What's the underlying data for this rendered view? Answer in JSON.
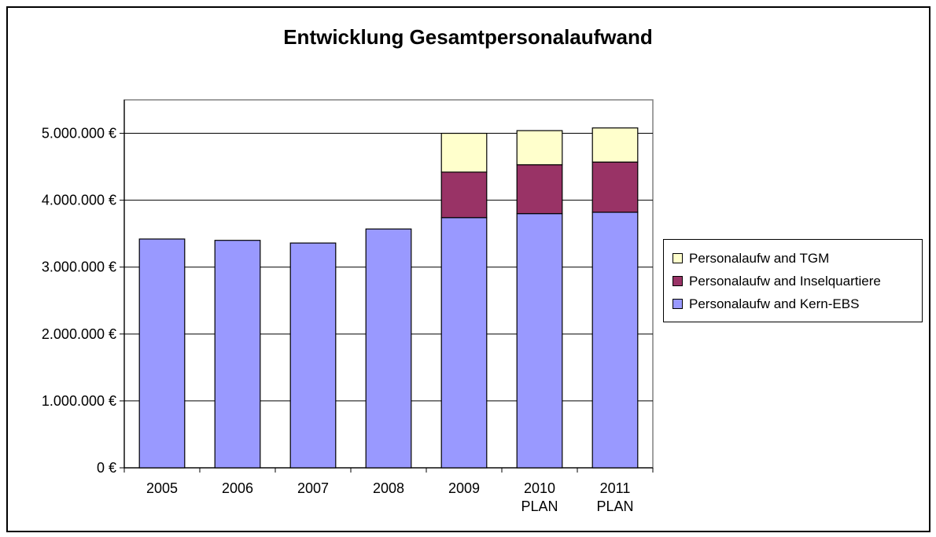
{
  "chart_data": {
    "type": "bar",
    "stacked": true,
    "title": "Entwicklung Gesamtpersonalaufwand",
    "categories": [
      [
        "2005"
      ],
      [
        "2006"
      ],
      [
        "2007"
      ],
      [
        "2008"
      ],
      [
        "2009"
      ],
      [
        "2010",
        "PLAN"
      ],
      [
        "2011",
        "PLAN"
      ]
    ],
    "ylim": [
      0,
      5500000
    ],
    "yticks": [
      {
        "value": 0,
        "label": "0 €"
      },
      {
        "value": 1000000,
        "label": "1.000.000 €"
      },
      {
        "value": 2000000,
        "label": "2.000.000 €"
      },
      {
        "value": 3000000,
        "label": "3.000.000 €"
      },
      {
        "value": 4000000,
        "label": "4.000.000 €"
      },
      {
        "value": 5000000,
        "label": "5.000.000 €"
      }
    ],
    "grid": true,
    "legend_position": "right",
    "series": [
      {
        "name": "Personalaufw and Kern-EBS",
        "color": "#9999ff",
        "values": [
          3420000,
          3400000,
          3360000,
          3570000,
          3740000,
          3800000,
          3820000
        ]
      },
      {
        "name": "Personalaufw and Inselquartiere",
        "color": "#993366",
        "values": [
          0,
          0,
          0,
          0,
          680000,
          730000,
          750000
        ]
      },
      {
        "name": "Personalaufw and TGM",
        "color": "#ffffcc",
        "values": [
          0,
          0,
          0,
          0,
          580000,
          510000,
          510000
        ]
      }
    ],
    "legend_order": [
      2,
      1,
      0
    ]
  }
}
